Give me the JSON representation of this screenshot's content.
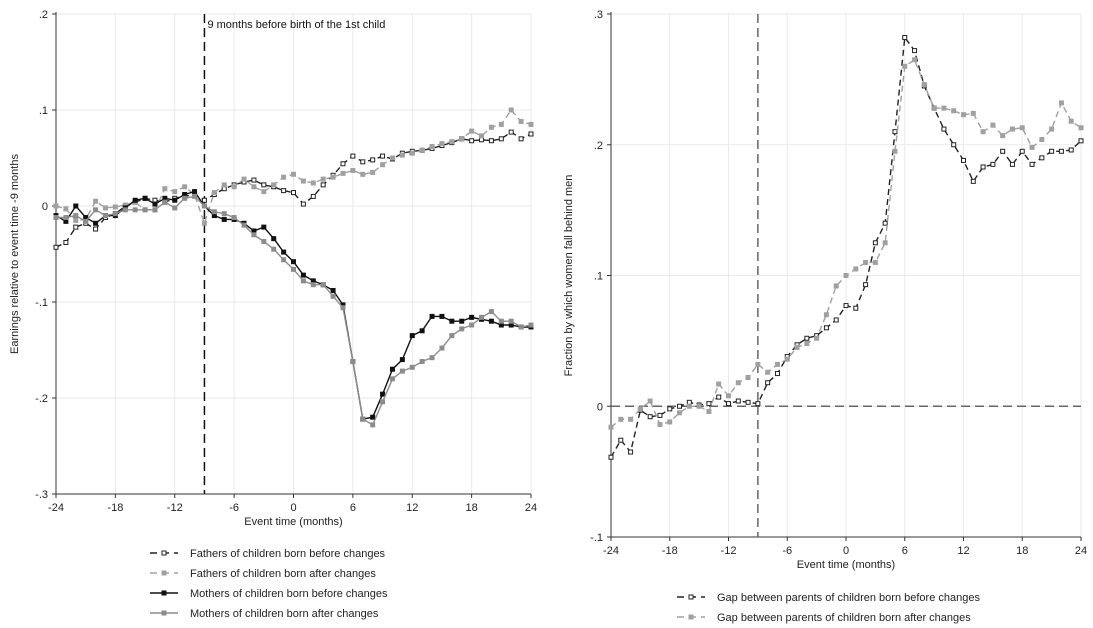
{
  "chart_data": [
    {
      "type": "line",
      "xlabel": "Event time (months)",
      "ylabel": "Earnings relative to event time -9 months",
      "xlim": [
        -24,
        24
      ],
      "ylim": [
        -0.3,
        0.2
      ],
      "xticks": [
        -24,
        -18,
        -12,
        -6,
        0,
        6,
        12,
        18,
        24
      ],
      "xtick_labels": [
        "-24",
        "-18",
        "-12",
        "-6",
        "0",
        "6",
        "12",
        "18",
        "24"
      ],
      "yticks": [
        -0.3,
        -0.2,
        -0.1,
        0,
        0.1,
        0.2
      ],
      "ytick_labels": [
        "-.3",
        "-.2",
        "-.1",
        "0",
        ".1",
        ".2"
      ],
      "reference_line": {
        "x": -9,
        "style": "dashed",
        "label": "9 months before birth of the 1st child"
      },
      "legend_position": "bottom",
      "grid": true,
      "x": [
        -24,
        -23,
        -22,
        -21,
        -20,
        -19,
        -18,
        -17,
        -16,
        -15,
        -14,
        -13,
        -12,
        -11,
        -10,
        -9,
        -8,
        -7,
        -6,
        -5,
        -4,
        -3,
        -2,
        -1,
        0,
        1,
        2,
        3,
        4,
        5,
        6,
        7,
        8,
        9,
        10,
        11,
        12,
        13,
        14,
        15,
        16,
        17,
        18,
        19,
        20,
        21,
        22,
        23,
        24
      ],
      "series": [
        {
          "name": "Fathers of children born before changes",
          "color": "#222222",
          "dash": "6,4",
          "marker": "hollow",
          "values": [
            -0.043,
            -0.038,
            -0.022,
            -0.018,
            -0.024,
            -0.012,
            -0.008,
            0.0,
            0.004,
            0.008,
            0.006,
            0.004,
            0.008,
            0.01,
            0.012,
            0.006,
            0.012,
            0.018,
            0.022,
            0.025,
            0.027,
            0.022,
            0.02,
            0.016,
            0.014,
            0.002,
            0.01,
            0.022,
            0.032,
            0.044,
            0.052,
            0.046,
            0.048,
            0.052,
            0.049,
            0.055,
            0.057,
            0.058,
            0.06,
            0.063,
            0.066,
            0.07,
            0.068,
            0.069,
            0.068,
            0.07,
            0.077,
            0.07,
            0.075
          ]
        },
        {
          "name": "Fathers of children born after changes",
          "color": "#a0a0a0",
          "dash": "6,4",
          "marker": "filled",
          "values": [
            0.0,
            -0.003,
            -0.015,
            -0.014,
            0.005,
            -0.002,
            -0.001,
            0.001,
            0.004,
            -0.004,
            -0.004,
            0.018,
            0.015,
            0.02,
            0.012,
            -0.018,
            0.014,
            0.022,
            0.02,
            0.028,
            0.02,
            0.015,
            0.022,
            0.03,
            0.033,
            0.026,
            0.024,
            0.028,
            0.03,
            0.034,
            0.037,
            0.033,
            0.035,
            0.043,
            0.05,
            0.053,
            0.055,
            0.058,
            0.062,
            0.065,
            0.067,
            0.07,
            0.078,
            0.073,
            0.082,
            0.085,
            0.1,
            0.088,
            0.085
          ]
        },
        {
          "name": "Mothers of children born before changes",
          "color": "#111111",
          "dash": "",
          "marker": "filled",
          "values": [
            -0.01,
            -0.016,
            0.0,
            -0.012,
            -0.018,
            -0.01,
            -0.01,
            -0.002,
            0.006,
            0.008,
            0.002,
            0.008,
            0.006,
            0.012,
            0.015,
            0.0,
            -0.01,
            -0.014,
            -0.014,
            -0.018,
            -0.026,
            -0.022,
            -0.034,
            -0.048,
            -0.058,
            -0.072,
            -0.078,
            -0.082,
            -0.088,
            -0.103,
            -0.162,
            -0.222,
            -0.22,
            -0.196,
            -0.17,
            -0.16,
            -0.135,
            -0.13,
            -0.115,
            -0.115,
            -0.12,
            -0.12,
            -0.116,
            -0.118,
            -0.12,
            -0.124,
            -0.124,
            -0.126,
            -0.126
          ]
        },
        {
          "name": "Mothers of children born after changes",
          "color": "#8c8c8c",
          "dash": "",
          "marker": "filled",
          "values": [
            -0.012,
            -0.012,
            -0.01,
            -0.016,
            -0.004,
            -0.01,
            -0.008,
            -0.004,
            -0.004,
            -0.004,
            -0.004,
            0.004,
            -0.002,
            0.008,
            0.01,
            0.0,
            -0.006,
            -0.008,
            -0.012,
            -0.02,
            -0.03,
            -0.037,
            -0.045,
            -0.056,
            -0.066,
            -0.078,
            -0.082,
            -0.082,
            -0.094,
            -0.106,
            -0.162,
            -0.222,
            -0.228,
            -0.204,
            -0.18,
            -0.172,
            -0.168,
            -0.162,
            -0.158,
            -0.148,
            -0.135,
            -0.128,
            -0.124,
            -0.116,
            -0.11,
            -0.12,
            -0.12,
            -0.126,
            -0.124
          ]
        }
      ]
    },
    {
      "type": "line",
      "xlabel": "Event time (months)",
      "ylabel": "Fraction by which women fall behind men",
      "xlim": [
        -24,
        24
      ],
      "ylim": [
        -0.1,
        0.3
      ],
      "xticks": [
        -24,
        -18,
        -12,
        -6,
        0,
        6,
        12,
        18,
        24
      ],
      "xtick_labels": [
        "-24",
        "-18",
        "-12",
        "-6",
        "0",
        "6",
        "12",
        "18",
        "24"
      ],
      "yticks": [
        -0.1,
        0,
        0.1,
        0.2,
        0.3
      ],
      "ytick_labels": [
        "-.1",
        "0",
        ".1",
        ".2",
        ".3"
      ],
      "reference_line": {
        "x": -9,
        "style": "dashed"
      },
      "zero_line": {
        "y": 0,
        "style": "dashed"
      },
      "legend_position": "bottom",
      "grid": true,
      "x": [
        -24,
        -23,
        -22,
        -21,
        -20,
        -19,
        -18,
        -17,
        -16,
        -15,
        -14,
        -13,
        -12,
        -11,
        -10,
        -9,
        -8,
        -7,
        -6,
        -5,
        -4,
        -3,
        -2,
        -1,
        0,
        1,
        2,
        3,
        4,
        5,
        6,
        7,
        8,
        9,
        10,
        11,
        12,
        13,
        14,
        15,
        16,
        17,
        18,
        19,
        20,
        21,
        22,
        23,
        24
      ],
      "series": [
        {
          "name": "Gap between parents of children born before changes",
          "color": "#222222",
          "dash": "6,4",
          "marker": "hollow",
          "values": [
            -0.039,
            -0.026,
            -0.035,
            -0.003,
            -0.008,
            -0.007,
            -0.002,
            0.0,
            0.003,
            0.001,
            0.002,
            0.007,
            0.002,
            0.004,
            0.003,
            0.002,
            0.018,
            0.025,
            0.038,
            0.047,
            0.052,
            0.054,
            0.06,
            0.066,
            0.077,
            0.075,
            0.093,
            0.125,
            0.14,
            0.21,
            0.282,
            0.272,
            0.245,
            0.228,
            0.212,
            0.2,
            0.188,
            0.172,
            0.183,
            0.185,
            0.195,
            0.185,
            0.195,
            0.185,
            0.19,
            0.195,
            0.195,
            0.196,
            0.203
          ]
        },
        {
          "name": "Gap between parents of children born after changes",
          "color": "#a0a0a0",
          "dash": "6,4",
          "marker": "filled",
          "values": [
            -0.016,
            -0.01,
            -0.01,
            -0.002,
            0.004,
            -0.014,
            -0.012,
            -0.005,
            0.0,
            0.0,
            -0.004,
            0.017,
            0.008,
            0.018,
            0.022,
            0.032,
            0.026,
            0.032,
            0.036,
            0.045,
            0.048,
            0.052,
            0.07,
            0.092,
            0.1,
            0.105,
            0.11,
            0.11,
            0.125,
            0.195,
            0.26,
            0.265,
            0.246,
            0.228,
            0.228,
            0.226,
            0.223,
            0.224,
            0.21,
            0.215,
            0.207,
            0.212,
            0.213,
            0.198,
            0.204,
            0.212,
            0.232,
            0.218,
            0.213
          ]
        }
      ]
    }
  ]
}
